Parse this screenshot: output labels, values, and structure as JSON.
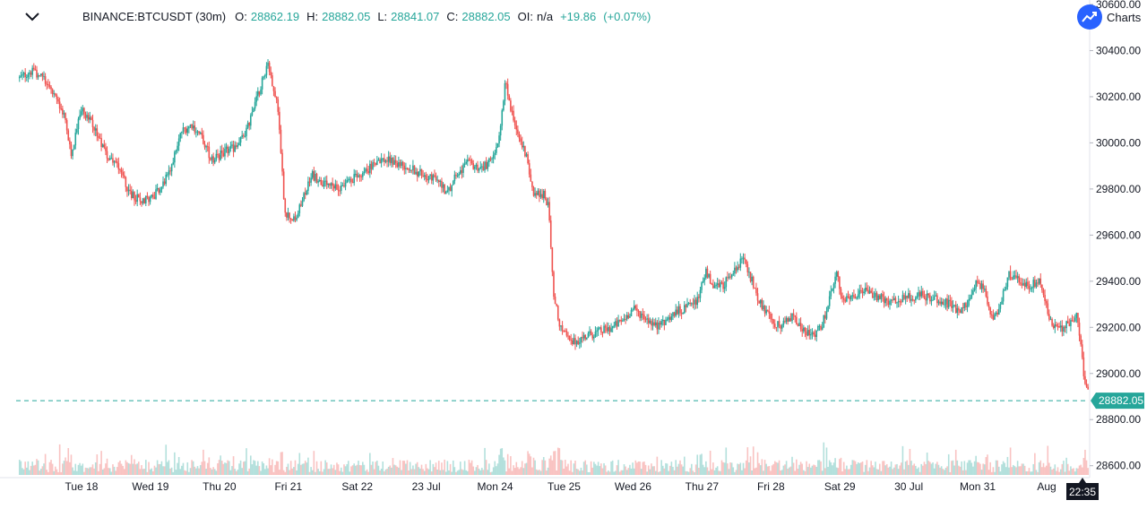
{
  "header": {
    "symbol": "BINANCE:BTCUSDT (30m)",
    "open_label": "O:",
    "open": "28862.19",
    "high_label": "H:",
    "high": "28882.05",
    "low_label": "L:",
    "low": "28841.07",
    "close_label": "C:",
    "close": "28882.05",
    "oi_label": "OI:",
    "oi": "n/a",
    "change": "+19.86",
    "change_pct": "(+0.07%)",
    "brand": "Charts"
  },
  "colors": {
    "up": "#26a69a",
    "down": "#ef5350",
    "price_line": "#26a69a",
    "axis_text": "#131722",
    "brand": "#2962ff"
  },
  "chart_data": {
    "type": "candlestick",
    "yticks": [
      "30600.00",
      "30400.00",
      "30200.00",
      "30000.00",
      "29800.00",
      "29600.00",
      "29400.00",
      "29200.00",
      "29000.00",
      "28800.00",
      "28600.00"
    ],
    "ylim": [
      28560,
      30600
    ],
    "xticks": [
      {
        "label": "Tue 18",
        "day": 0
      },
      {
        "label": "Wed 19",
        "day": 1
      },
      {
        "label": "Thu 20",
        "day": 2
      },
      {
        "label": "Fri 21",
        "day": 3
      },
      {
        "label": "Sat 22",
        "day": 4
      },
      {
        "label": "23 Jul",
        "day": 5
      },
      {
        "label": "Mon 24",
        "day": 6
      },
      {
        "label": "Tue 25",
        "day": 7
      },
      {
        "label": "Wed 26",
        "day": 8
      },
      {
        "label": "Thu 27",
        "day": 9
      },
      {
        "label": "Fri 28",
        "day": 10
      },
      {
        "label": "Sat 29",
        "day": 11
      },
      {
        "label": "30 Jul",
        "day": 12
      },
      {
        "label": "Mon 31",
        "day": 13
      },
      {
        "label": "Aug",
        "day": 14
      }
    ],
    "x_range_days": [
      -0.9,
      14.6
    ],
    "anchors": [
      [
        -0.9,
        30280
      ],
      [
        -0.75,
        30310
      ],
      [
        -0.55,
        30290
      ],
      [
        -0.4,
        30200
      ],
      [
        -0.25,
        30120
      ],
      [
        -0.15,
        29950
      ],
      [
        0.0,
        30150
      ],
      [
        0.15,
        30080
      ],
      [
        0.35,
        29950
      ],
      [
        0.55,
        29900
      ],
      [
        0.7,
        29780
      ],
      [
        0.85,
        29750
      ],
      [
        1.0,
        29760
      ],
      [
        1.15,
        29800
      ],
      [
        1.3,
        29900
      ],
      [
        1.45,
        30050
      ],
      [
        1.6,
        30080
      ],
      [
        1.75,
        30020
      ],
      [
        1.9,
        29920
      ],
      [
        2.05,
        29960
      ],
      [
        2.25,
        29980
      ],
      [
        2.4,
        30060
      ],
      [
        2.55,
        30200
      ],
      [
        2.7,
        30350
      ],
      [
        2.85,
        30150
      ],
      [
        2.95,
        29700
      ],
      [
        3.1,
        29660
      ],
      [
        3.2,
        29750
      ],
      [
        3.35,
        29860
      ],
      [
        3.5,
        29820
      ],
      [
        3.7,
        29800
      ],
      [
        3.9,
        29840
      ],
      [
        4.1,
        29870
      ],
      [
        4.3,
        29930
      ],
      [
        4.5,
        29920
      ],
      [
        4.7,
        29900
      ],
      [
        4.9,
        29870
      ],
      [
        5.05,
        29850
      ],
      [
        5.2,
        29830
      ],
      [
        5.3,
        29780
      ],
      [
        5.45,
        29870
      ],
      [
        5.6,
        29910
      ],
      [
        5.8,
        29890
      ],
      [
        5.95,
        29920
      ],
      [
        6.05,
        30000
      ],
      [
        6.15,
        30260
      ],
      [
        6.3,
        30050
      ],
      [
        6.45,
        29950
      ],
      [
        6.55,
        29780
      ],
      [
        6.7,
        29780
      ],
      [
        6.78,
        29720
      ],
      [
        6.85,
        29330
      ],
      [
        6.95,
        29200
      ],
      [
        7.1,
        29130
      ],
      [
        7.3,
        29160
      ],
      [
        7.5,
        29180
      ],
      [
        7.7,
        29200
      ],
      [
        7.85,
        29230
      ],
      [
        8.0,
        29280
      ],
      [
        8.2,
        29240
      ],
      [
        8.35,
        29200
      ],
      [
        8.5,
        29240
      ],
      [
        8.65,
        29270
      ],
      [
        8.8,
        29290
      ],
      [
        8.95,
        29320
      ],
      [
        9.05,
        29450
      ],
      [
        9.15,
        29380
      ],
      [
        9.3,
        29380
      ],
      [
        9.45,
        29450
      ],
      [
        9.6,
        29500
      ],
      [
        9.75,
        29380
      ],
      [
        9.85,
        29300
      ],
      [
        10.0,
        29230
      ],
      [
        10.15,
        29200
      ],
      [
        10.3,
        29250
      ],
      [
        10.45,
        29200
      ],
      [
        10.6,
        29160
      ],
      [
        10.75,
        29220
      ],
      [
        10.85,
        29320
      ],
      [
        10.95,
        29430
      ],
      [
        11.05,
        29310
      ],
      [
        11.2,
        29330
      ],
      [
        11.35,
        29360
      ],
      [
        11.5,
        29340
      ],
      [
        11.65,
        29320
      ],
      [
        11.8,
        29310
      ],
      [
        12.0,
        29330
      ],
      [
        12.2,
        29340
      ],
      [
        12.4,
        29320
      ],
      [
        12.6,
        29300
      ],
      [
        12.75,
        29260
      ],
      [
        12.9,
        29330
      ],
      [
        13.0,
        29400
      ],
      [
        13.1,
        29350
      ],
      [
        13.2,
        29240
      ],
      [
        13.3,
        29280
      ],
      [
        13.45,
        29430
      ],
      [
        13.6,
        29400
      ],
      [
        13.75,
        29380
      ],
      [
        13.9,
        29400
      ],
      [
        14.05,
        29220
      ],
      [
        14.2,
        29190
      ],
      [
        14.35,
        29230
      ],
      [
        14.45,
        29250
      ],
      [
        14.55,
        28960
      ],
      [
        14.65,
        28880
      ],
      [
        14.75,
        28930
      ],
      [
        14.85,
        28920
      ],
      [
        14.95,
        28900
      ],
      [
        15.05,
        28882.05
      ]
    ],
    "last_price": 28882.05,
    "last_price_label": "28882.05",
    "time_label": "22:35",
    "grid": false
  }
}
